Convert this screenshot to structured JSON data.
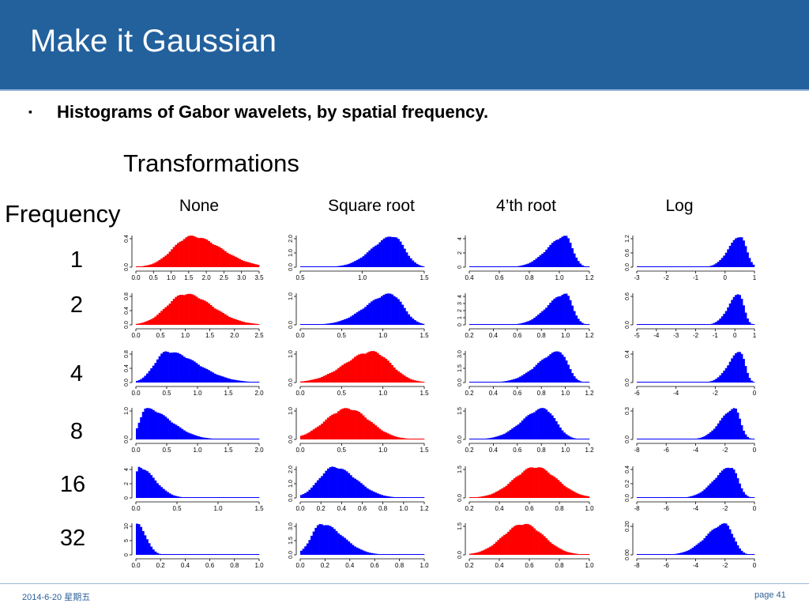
{
  "header": {
    "title": "Make it Gaussian"
  },
  "bullet": {
    "marker": "▪",
    "text": "Histograms of Gabor wavelets, by spatial frequency."
  },
  "transformations_label": "Transformations",
  "frequency_label": "Frequency",
  "columns": [
    "None",
    "Square root",
    "4’th root",
    "Log"
  ],
  "rows": [
    "1",
    "2",
    "4",
    "8",
    "16",
    "32"
  ],
  "colors": {
    "header": "#23619d",
    "gaussian": "#ff0000",
    "non_gaussian": "#0000ff"
  },
  "footer": {
    "date": "2014-6-20 星期五",
    "page": "page 41"
  },
  "chart_data": {
    "type": "histogram-grid",
    "row_labels": [
      "1",
      "2",
      "4",
      "8",
      "16",
      "32"
    ],
    "column_labels": [
      "None",
      "Square root",
      "4’th root",
      "Log"
    ],
    "cells": [
      [
        {
          "xticks": [
            "0.0",
            "0.5",
            "1.0",
            "1.5",
            "2.0",
            "2.5",
            "3.0",
            "3.5"
          ],
          "yticks": [
            "0.0",
            "0.4"
          ],
          "color": "red",
          "dist": {
            "mu": 0.45,
            "sl": 0.15,
            "sr": 0.24
          }
        },
        {
          "xticks": [
            "0.5",
            "1.0",
            "1.5"
          ],
          "yticks": [
            "0.0",
            "1.0",
            "2.0"
          ],
          "color": "blue",
          "dist": {
            "mu": 0.75,
            "sl": 0.17,
            "sr": 0.09
          }
        },
        {
          "xticks": [
            "0.4",
            "0.6",
            "0.8",
            "1.0",
            "1.2"
          ],
          "yticks": [
            "0",
            "2",
            "4"
          ],
          "color": "blue",
          "dist": {
            "mu": 0.8,
            "sl": 0.15,
            "sr": 0.06
          }
        },
        {
          "xticks": [
            "-3",
            "-2",
            "-1",
            "0",
            "1"
          ],
          "yticks": [
            "0.0",
            "0.6",
            "1.2"
          ],
          "color": "blue",
          "dist": {
            "mu": 0.88,
            "sl": 0.1,
            "sr": 0.05
          }
        }
      ],
      [
        {
          "xticks": [
            "0.0",
            "0.5",
            "1.0",
            "1.5",
            "2.0",
            "2.5"
          ],
          "yticks": [
            "0.0",
            "0.4",
            "0.8"
          ],
          "color": "red",
          "dist": {
            "mu": 0.4,
            "sl": 0.15,
            "sr": 0.22
          }
        },
        {
          "xticks": [
            "0.0",
            "0.5",
            "1.0",
            "1.5"
          ],
          "yticks": [
            "0.0",
            "1.0"
          ],
          "color": "blue",
          "dist": {
            "mu": 0.73,
            "sl": 0.2,
            "sr": 0.1
          }
        },
        {
          "xticks": [
            "0.2",
            "0.4",
            "0.6",
            "0.8",
            "1.0",
            "1.2"
          ],
          "yticks": [
            "0",
            "1",
            "2",
            "3",
            "4"
          ],
          "color": "blue",
          "dist": {
            "mu": 0.8,
            "sl": 0.15,
            "sr": 0.06
          }
        },
        {
          "xticks": [
            "-5",
            "-4",
            "-3",
            "-2",
            "-1",
            "0",
            "1"
          ],
          "yticks": [
            "0.0",
            "0.6"
          ],
          "color": "blue",
          "dist": {
            "mu": 0.87,
            "sl": 0.09,
            "sr": 0.04
          }
        }
      ],
      [
        {
          "xticks": [
            "0.0",
            "0.5",
            "1.0",
            "1.5",
            "2.0"
          ],
          "yticks": [
            "0.0",
            "0.4",
            "0.8"
          ],
          "color": "blue",
          "dist": {
            "mu": 0.25,
            "sl": 0.1,
            "sr": 0.25
          }
        },
        {
          "xticks": [
            "0.0",
            "0.5",
            "1.0",
            "1.5"
          ],
          "yticks": [
            "0.0",
            "1.0"
          ],
          "color": "red",
          "dist": {
            "mu": 0.58,
            "sl": 0.22,
            "sr": 0.15
          }
        },
        {
          "xticks": [
            "0.2",
            "0.4",
            "0.6",
            "0.8",
            "1.0",
            "1.2"
          ],
          "yticks": [
            "0.0",
            "1.5",
            "3.0"
          ],
          "color": "blue",
          "dist": {
            "mu": 0.75,
            "sl": 0.18,
            "sr": 0.07
          }
        },
        {
          "xticks": [
            "-6",
            "-4",
            "-2",
            "0"
          ],
          "yticks": [
            "0.0",
            "0.4"
          ],
          "color": "blue",
          "dist": {
            "mu": 0.88,
            "sl": 0.1,
            "sr": 0.04
          }
        }
      ],
      [
        {
          "xticks": [
            "0.0",
            "0.5",
            "1.0",
            "1.5",
            "2.0"
          ],
          "yticks": [
            "0.0",
            "1.0"
          ],
          "color": "blue",
          "dist": {
            "mu": 0.08,
            "sl": 0.05,
            "sr": 0.2
          }
        },
        {
          "xticks": [
            "0.0",
            "0.5",
            "1.0",
            "1.5"
          ],
          "yticks": [
            "0.0",
            "1.0"
          ],
          "color": "red",
          "dist": {
            "mu": 0.38,
            "sl": 0.18,
            "sr": 0.18
          }
        },
        {
          "xticks": [
            "0.2",
            "0.4",
            "0.6",
            "0.8",
            "1.0",
            "1.2"
          ],
          "yticks": [
            "0.0",
            "1.5"
          ],
          "color": "blue",
          "dist": {
            "mu": 0.62,
            "sl": 0.18,
            "sr": 0.1
          }
        },
        {
          "xticks": [
            "-8",
            "-6",
            "-4",
            "-2",
            "0"
          ],
          "yticks": [
            "0.0",
            "0.3"
          ],
          "color": "blue",
          "dist": {
            "mu": 0.83,
            "sl": 0.12,
            "sr": 0.05
          }
        }
      ],
      [
        {
          "xticks": [
            "0.0",
            "0.5",
            "1.0",
            "1.5"
          ],
          "yticks": [
            "0",
            "2",
            "4"
          ],
          "color": "blue",
          "dist": {
            "mu": 0.02,
            "sl": 0.02,
            "sr": 0.13
          }
        },
        {
          "xticks": [
            "0.0",
            "0.2",
            "0.4",
            "0.6",
            "0.8",
            "1.0",
            "1.2"
          ],
          "yticks": [
            "0.0",
            "1.0",
            "2.0"
          ],
          "color": "blue",
          "dist": {
            "mu": 0.27,
            "sl": 0.12,
            "sr": 0.18
          }
        },
        {
          "xticks": [
            "0.2",
            "0.4",
            "0.6",
            "0.8",
            "1.0"
          ],
          "yticks": [
            "0.0",
            "1.5"
          ],
          "color": "red",
          "dist": {
            "mu": 0.55,
            "sl": 0.18,
            "sr": 0.18
          }
        },
        {
          "xticks": [
            "-8",
            "-6",
            "-4",
            "-2",
            "0"
          ],
          "yticks": [
            "0.0",
            "0.2",
            "0.4"
          ],
          "color": "blue",
          "dist": {
            "mu": 0.8,
            "sl": 0.14,
            "sr": 0.06
          }
        }
      ],
      [
        {
          "xticks": [
            "0.0",
            "0.2",
            "0.4",
            "0.6",
            "0.8",
            "1.0"
          ],
          "yticks": [
            "0",
            "5",
            "10"
          ],
          "color": "blue",
          "dist": {
            "mu": 0.01,
            "sl": 0.01,
            "sr": 0.07
          }
        },
        {
          "xticks": [
            "0.0",
            "0.2",
            "0.4",
            "0.6",
            "0.8",
            "1.0"
          ],
          "yticks": [
            "0.0",
            "1.5",
            "3.0"
          ],
          "color": "blue",
          "dist": {
            "mu": 0.17,
            "sl": 0.08,
            "sr": 0.17
          }
        },
        {
          "xticks": [
            "0.2",
            "0.4",
            "0.6",
            "0.8",
            "1.0"
          ],
          "yticks": [
            "0.0",
            "1.5"
          ],
          "color": "red",
          "dist": {
            "mu": 0.45,
            "sl": 0.17,
            "sr": 0.17
          }
        },
        {
          "xticks": [
            "-8",
            "-6",
            "-4",
            "-2",
            "0"
          ],
          "yticks": [
            "0.00",
            "0.20"
          ],
          "color": "blue",
          "dist": {
            "mu": 0.75,
            "sl": 0.16,
            "sr": 0.07
          }
        }
      ]
    ]
  }
}
